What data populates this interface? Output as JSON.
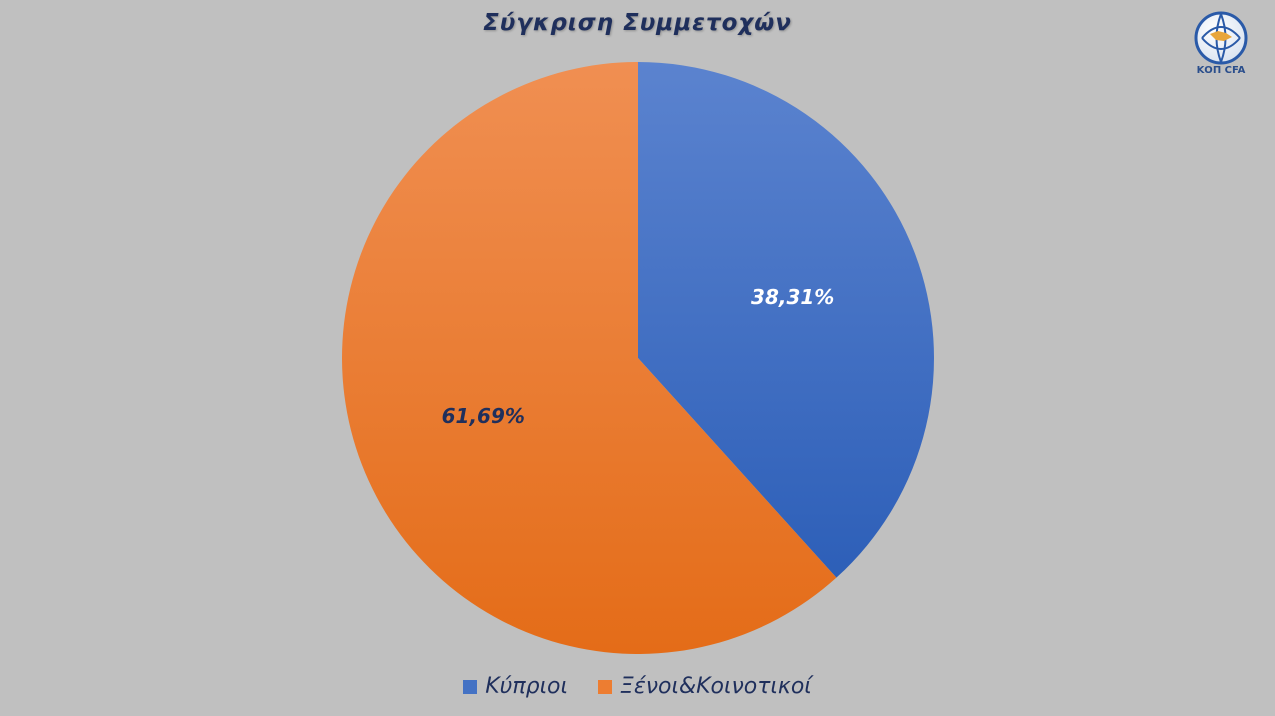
{
  "chart_data": {
    "type": "pie",
    "title": "Σύγκριση Συμμετοχών",
    "categories": [
      "Κύπριοι",
      "Ξένοι&Κοινοτικοί"
    ],
    "values": [
      38.31,
      61.69
    ],
    "data_labels": [
      "38,31%",
      "61,69%"
    ],
    "colors": [
      "#4472c4",
      "#ed7d31"
    ],
    "label_colors": [
      "#ffffff",
      "#1f2f5c"
    ],
    "legend_position": "bottom"
  },
  "logo": {
    "caption": "ΚΟΠ CFA"
  }
}
